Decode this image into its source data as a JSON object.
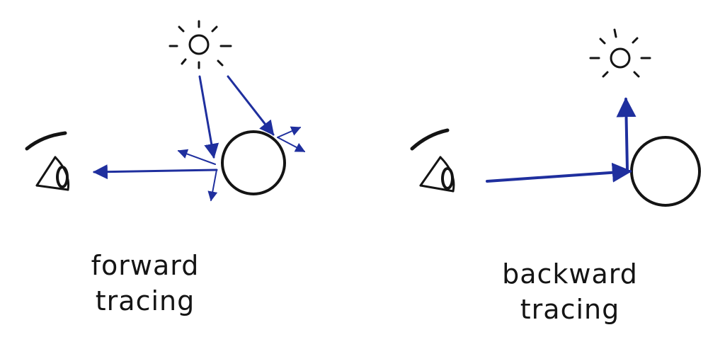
{
  "panels": {
    "forward": {
      "caption_line1": "forward",
      "caption_line2": "tracing"
    },
    "backward": {
      "caption_line1": "backward",
      "caption_line2": "tracing"
    }
  },
  "colors": {
    "ink": "#141414",
    "ray": "#1f2f9e"
  },
  "icons": [
    "eye-icon",
    "sun-icon",
    "sphere"
  ]
}
